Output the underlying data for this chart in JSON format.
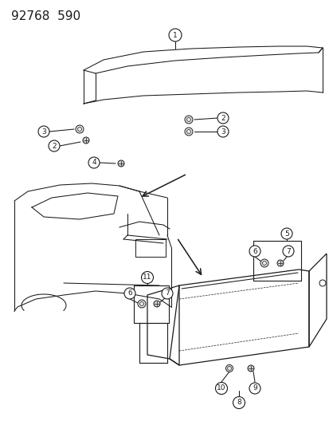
{
  "title": "92768  590",
  "bg_color": "#ffffff",
  "line_color": "#1a1a1a",
  "title_fontsize": 11,
  "fig_width": 4.14,
  "fig_height": 5.33,
  "dpi": 100
}
